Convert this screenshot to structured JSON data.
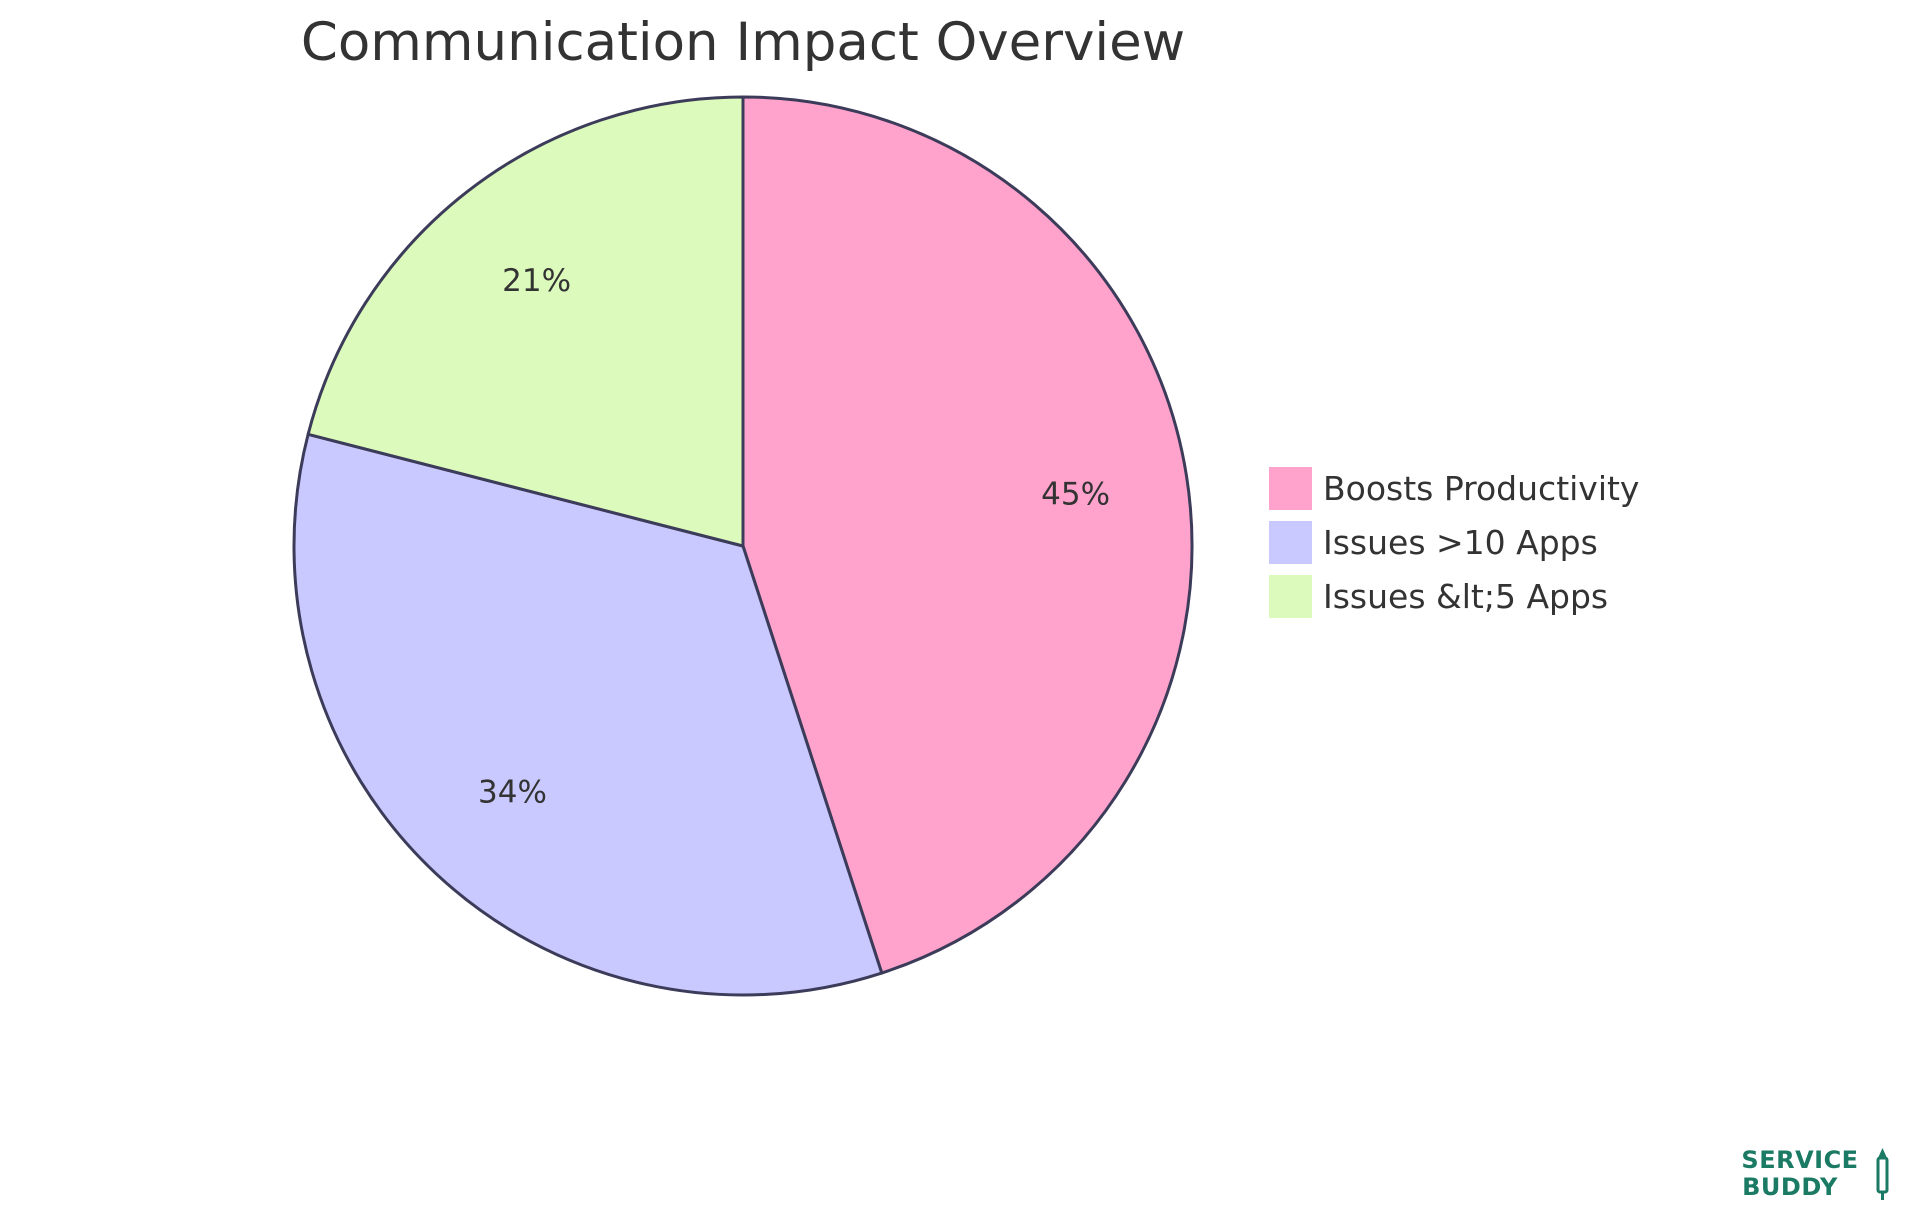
{
  "chart_data": {
    "type": "pie",
    "title": "Communication Impact Overview",
    "slices": [
      {
        "label": "Boosts Productivity",
        "value": 45,
        "display": "45%",
        "color": "#ffa3cd"
      },
      {
        "label": "Issues >10 Apps",
        "value": 34,
        "display": "34%",
        "color": "#c9c9ff"
      },
      {
        "label": "Issues &lt;5 Apps",
        "value": 21,
        "display": "21%",
        "color": "#dbfabb"
      }
    ],
    "stroke_color": "#3c3c5a",
    "legend_position": "right"
  },
  "logo": {
    "line1": "SERVICE",
    "line2": "BUDDY",
    "color": "#1a7a64"
  }
}
